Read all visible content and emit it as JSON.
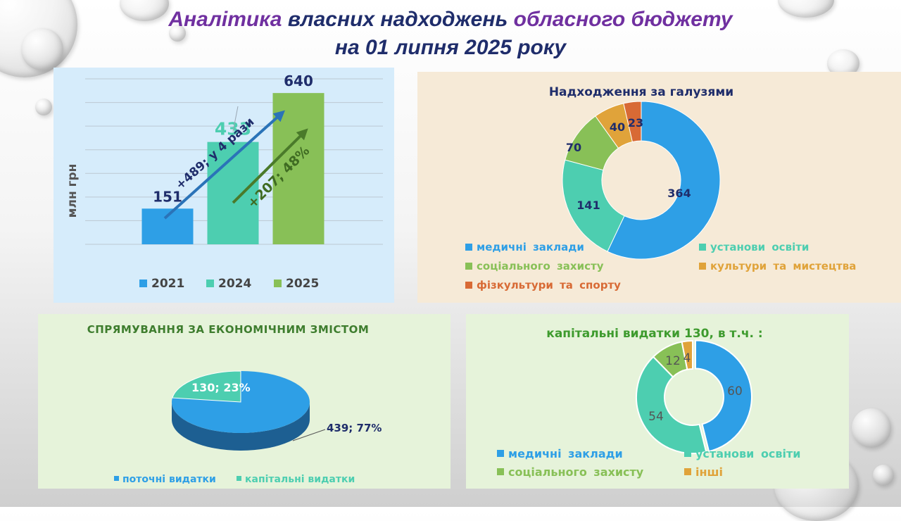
{
  "title": {
    "part1": "Аналітика",
    "part2": "власних надходжень",
    "part3": "обласного бюджету",
    "line2": "на 01 липня 2025 року"
  },
  "colors": {
    "navy": "#1f2d6b",
    "blue": "#2e9fe6",
    "teal": "#4dceb0",
    "green": "#88c057",
    "orange": "#e0a33a",
    "red": "#d86a35"
  },
  "chart_data": [
    {
      "type": "bar",
      "ylabel": "млн грн",
      "categories": [
        "2021",
        "2024",
        "2025"
      ],
      "values": [
        151,
        433,
        640
      ],
      "value_labels": [
        "151",
        "433",
        "640"
      ],
      "ylim": [
        0,
        700
      ],
      "grid": true,
      "legend_position": "bottom",
      "series_colors": [
        "#2e9fe6",
        "#4dceb0",
        "#88c057"
      ],
      "annotations": [
        "+489; у 4 рази",
        "+207; 48%"
      ]
    },
    {
      "type": "pie",
      "variant": "donut",
      "title": "Надходження за галузями",
      "categories": [
        "медичні заклади",
        "установи освіти",
        "соціального захисту",
        "культури та мистецтва",
        "фізкультури та спорту"
      ],
      "values": [
        364,
        141,
        70,
        40,
        23
      ],
      "colors": [
        "#2e9fe6",
        "#4dceb0",
        "#88c057",
        "#e0a33a",
        "#d86a35"
      ],
      "legend_position": "bottom"
    },
    {
      "type": "pie",
      "variant": "3d",
      "title": "СПРЯМУВАННЯ ЗА ЕКОНОМІЧНИМ ЗМІСТОМ",
      "categories": [
        "поточні видатки",
        "капітальні видатки"
      ],
      "values": [
        439,
        130
      ],
      "percents": [
        77,
        23
      ],
      "data_labels": [
        "439; 77%",
        "130; 23%"
      ],
      "colors": [
        "#2e9fe6",
        "#4dceb0"
      ],
      "legend_position": "bottom"
    },
    {
      "type": "pie",
      "variant": "donut",
      "title": "капітальні видатки 130, в т.ч. :",
      "categories": [
        "медичні заклади",
        "установи освіти",
        "соціального захисту",
        "інші"
      ],
      "values": [
        60,
        54,
        12,
        4
      ],
      "colors": [
        "#2e9fe6",
        "#4dceb0",
        "#88c057",
        "#e0a33a"
      ],
      "legend_position": "bottom"
    }
  ]
}
